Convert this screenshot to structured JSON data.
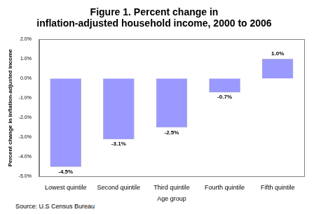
{
  "chart_data": {
    "type": "bar",
    "title": [
      "Figure 1. Percent change in",
      "inflation-adjusted household income, 2000 to 2006"
    ],
    "x_label": "Age group",
    "y_label": "Percent change in inflation-adjusted income",
    "annotations": [
      "Source: U.S Census Bureau"
    ],
    "categories": [
      "Lowest quintile",
      "Second quintile",
      "Third quintile",
      "Fourth quintile",
      "Fifth quintile"
    ],
    "values": [
      -4.5,
      -3.1,
      -2.5,
      -0.7,
      1.0
    ],
    "value_labels": [
      "-4.5%",
      "-3.1%",
      "-2.5%",
      "-0.7%",
      "1.0%"
    ],
    "data_labels": true,
    "color": "#9999ff",
    "ylim": [
      -5,
      2
    ],
    "yticks": [
      {
        "value": -5,
        "label": "-5.0%"
      },
      {
        "value": -4,
        "label": "-4.0%"
      },
      {
        "value": -3,
        "label": "-3.0%"
      },
      {
        "value": -2,
        "label": "-2.0%"
      },
      {
        "value": -1,
        "label": "-1.0%"
      },
      {
        "value": 0,
        "label": "0.0%"
      },
      {
        "value": 1,
        "label": "1.0%"
      },
      {
        "value": 2,
        "label": "2.0%"
      }
    ],
    "grid": false
  }
}
